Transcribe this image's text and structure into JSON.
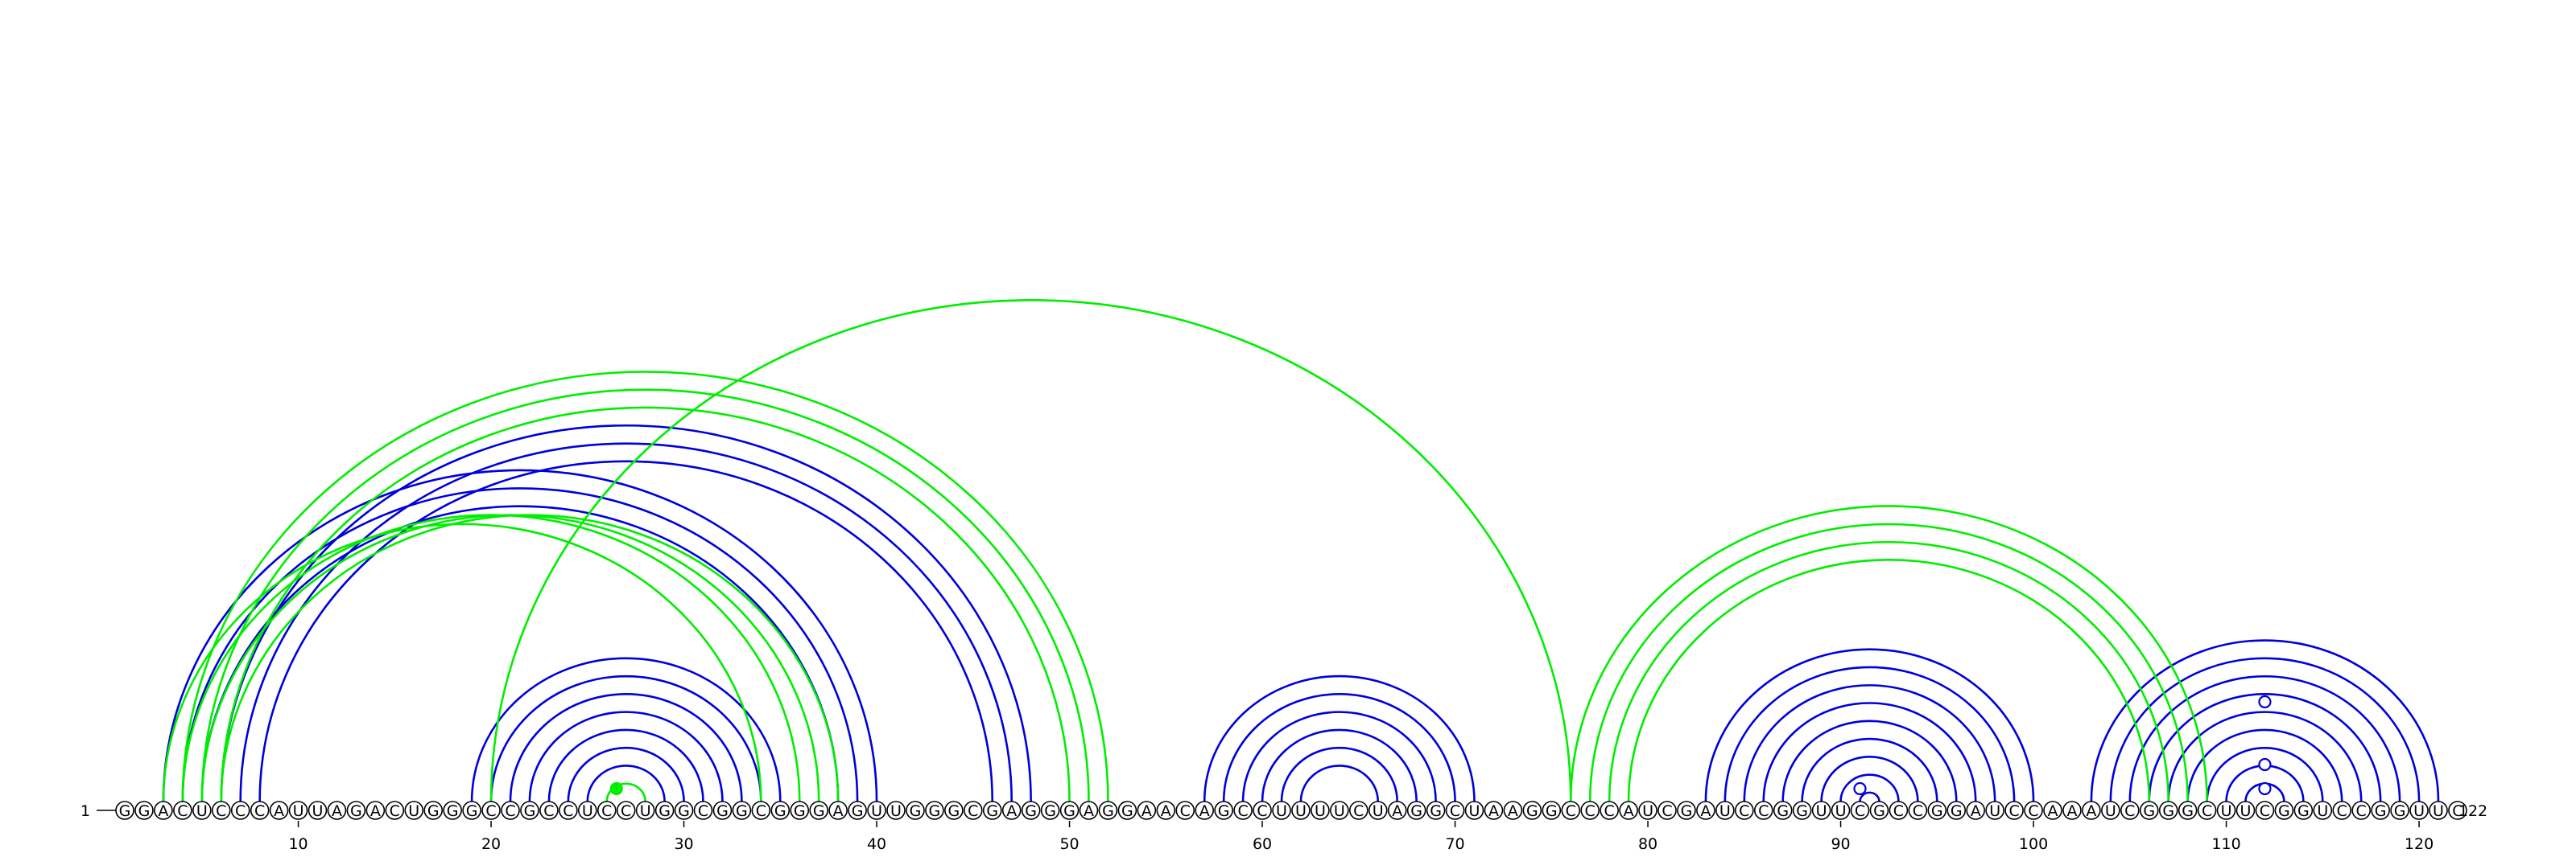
{
  "chart_data": {
    "type": "arc-diagram",
    "sequence": "GGACUCCCAUUAGACUGGGCCGCCUCCUGGCGGCGGGAGUUGGGCGAGGGAGGAACAGCCUUUUCUAGGCUAAGGCCCAUCGAUCCGGUUCGCCGGAUCCAAAUCGGGCUUCGGUCCGGUUC",
    "start_label": "1",
    "end_label": "122",
    "tick_positions": [
      10,
      20,
      30,
      40,
      50,
      60,
      70,
      80,
      90,
      100,
      110,
      120
    ],
    "tick_labels": [
      "10",
      "20",
      "30",
      "40",
      "50",
      "60",
      "70",
      "80",
      "90",
      "100",
      "110",
      "120"
    ],
    "colors": {
      "blue": "#0000dd",
      "green": "#00ee00"
    },
    "blue_pairs": [
      [
        3,
        40
      ],
      [
        4,
        39
      ],
      [
        5,
        38
      ],
      [
        6,
        48
      ],
      [
        7,
        47
      ],
      [
        8,
        46
      ],
      [
        19,
        35
      ],
      [
        20,
        34
      ],
      [
        21,
        33
      ],
      [
        22,
        32
      ],
      [
        23,
        31
      ],
      [
        24,
        30
      ],
      [
        25,
        29
      ],
      [
        57,
        71
      ],
      [
        58,
        70
      ],
      [
        59,
        69
      ],
      [
        60,
        68
      ],
      [
        61,
        67
      ],
      [
        62,
        66
      ],
      [
        83,
        100
      ],
      [
        84,
        99
      ],
      [
        85,
        98
      ],
      [
        86,
        97
      ],
      [
        87,
        96
      ],
      [
        88,
        95
      ],
      [
        89,
        94
      ],
      [
        90,
        93
      ],
      [
        91,
        92
      ],
      [
        103,
        121
      ],
      [
        104,
        120
      ],
      [
        105,
        119
      ],
      [
        106,
        118
      ],
      [
        107,
        117
      ],
      [
        108,
        116
      ],
      [
        109,
        115
      ],
      [
        110,
        114
      ],
      [
        111,
        113
      ]
    ],
    "green_pairs": [
      [
        3,
        34
      ],
      [
        4,
        36
      ],
      [
        5,
        37
      ],
      [
        6,
        38
      ],
      [
        4,
        52
      ],
      [
        5,
        51
      ],
      [
        6,
        50
      ],
      [
        20,
        76
      ],
      [
        26,
        28
      ],
      [
        76,
        109
      ],
      [
        77,
        108
      ],
      [
        78,
        107
      ],
      [
        79,
        106
      ]
    ],
    "markers": [
      {
        "pos": 26.5,
        "height": 16,
        "style": "filled",
        "color": "#00ee00"
      },
      {
        "pos": 91,
        "height": 16,
        "style": "open",
        "color": "#0000dd"
      },
      {
        "pos": 112,
        "height": 16,
        "style": "open",
        "color": "#0000dd"
      },
      {
        "pos": 112,
        "height": 46,
        "style": "open",
        "color": "#0000dd"
      },
      {
        "pos": 112,
        "height": 124,
        "style": "open",
        "color": "#0000dd"
      }
    ]
  }
}
